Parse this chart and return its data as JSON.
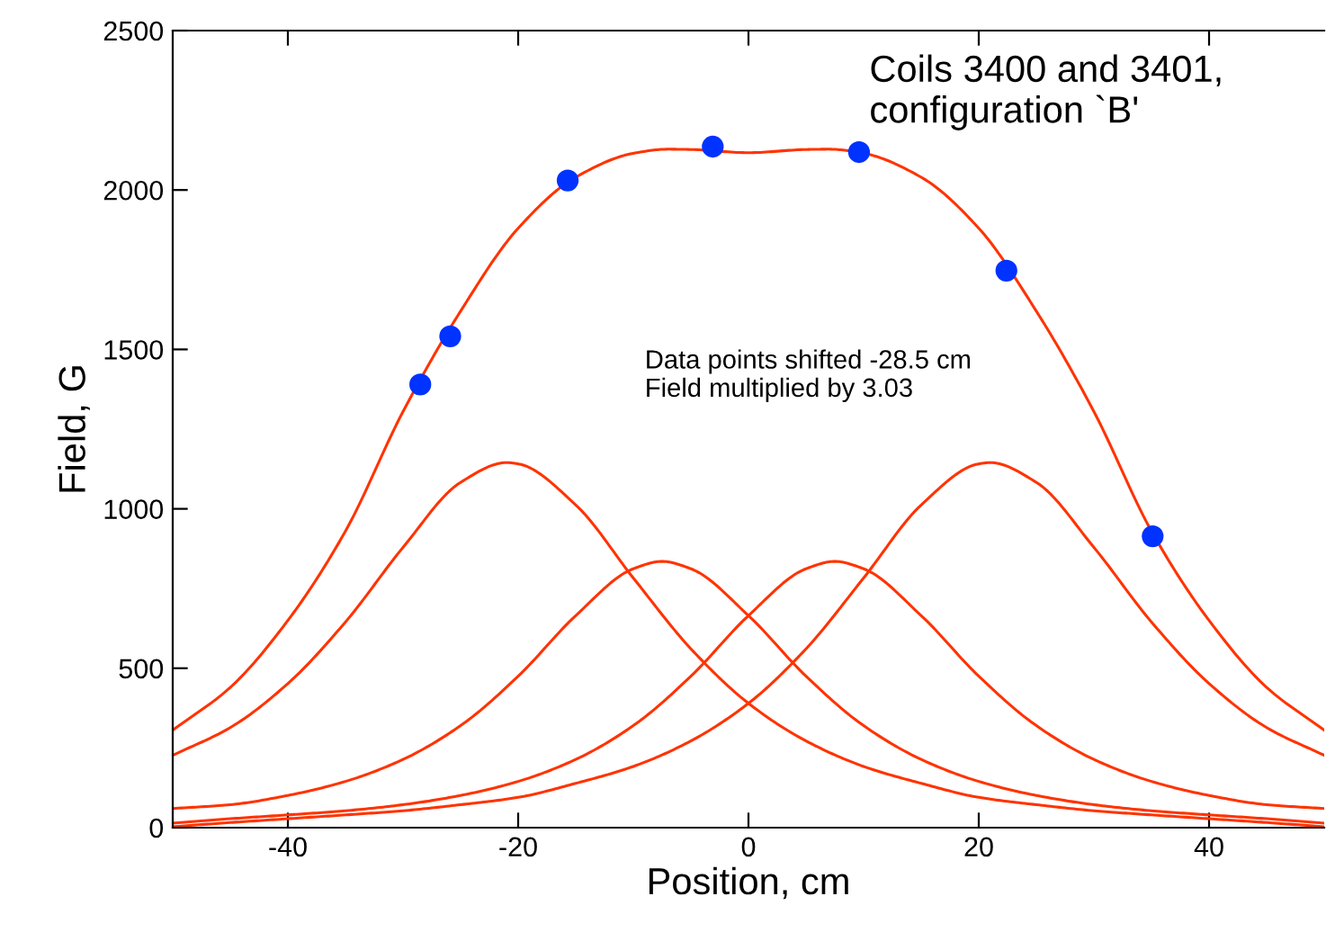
{
  "chart_data": {
    "type": "line",
    "annotations": [
      "Coils 3400 and 3401,\nconfiguration `B'",
      "Data points shifted -28.5 cm\nField multiplied by 3.03"
    ],
    "xlabel": "Position, cm",
    "ylabel": "Field, G",
    "xlim": [
      -50,
      50
    ],
    "ylim": [
      0,
      2500
    ],
    "xticks": [
      -40,
      -20,
      0,
      20,
      40
    ],
    "yticks": [
      0,
      500,
      1000,
      1500,
      2000,
      2500
    ],
    "grid": false,
    "legend": false,
    "series": [
      {
        "color": "#ff3300",
        "x": [
          -50,
          -45,
          -40,
          -35,
          -30,
          -25,
          -20,
          -15,
          -10,
          -7,
          -5,
          0,
          5,
          7,
          10,
          15,
          20,
          25,
          30,
          35,
          40,
          45,
          50
        ],
        "values": [
          306,
          440,
          650,
          930,
          1305,
          1620,
          1880,
          2040,
          2115,
          2128,
          2127,
          2117,
          2127,
          2128,
          2115,
          2040,
          1880,
          1620,
          1305,
          930,
          650,
          440,
          306
        ]
      },
      {
        "color": "#ff3300",
        "x": [
          -50,
          -45,
          -40,
          -35,
          -30,
          -25,
          -21,
          -20,
          -15,
          -10,
          -5,
          0,
          5,
          10,
          15,
          20,
          25,
          30,
          35,
          40,
          45,
          50
        ],
        "values": [
          227,
          314,
          452,
          645,
          879,
          1083,
          1145,
          1141,
          1012,
          783,
          561,
          390,
          272,
          192,
          139,
          95,
          72,
          53,
          40,
          28,
          16,
          3
        ]
      },
      {
        "color": "#ff3300",
        "x": [
          -50,
          -45,
          -40,
          -35,
          -30,
          -25,
          -20,
          -15,
          -10,
          -7.5,
          -5,
          0,
          5,
          10,
          15,
          20,
          25,
          30,
          35,
          40,
          45,
          50
        ],
        "values": [
          60,
          72,
          101,
          145,
          214,
          320,
          475,
          665,
          812,
          835,
          812,
          665,
          475,
          320,
          214,
          145,
          101,
          72,
          53,
          40,
          28,
          14
        ]
      },
      {
        "color": "#ff3300",
        "x": [
          -50,
          -45,
          -40,
          -35,
          -30,
          -25,
          -20,
          -15,
          -10,
          -5,
          0,
          5,
          7.5,
          10,
          15,
          20,
          25,
          30,
          35,
          40,
          45,
          50
        ],
        "values": [
          14,
          28,
          40,
          53,
          72,
          101,
          145,
          214,
          320,
          475,
          665,
          812,
          835,
          812,
          665,
          475,
          320,
          214,
          145,
          101,
          72,
          60
        ]
      },
      {
        "color": "#ff3300",
        "x": [
          -50,
          -45,
          -40,
          -35,
          -30,
          -25,
          -20,
          -15,
          -10,
          -5,
          0,
          5,
          10,
          15,
          20,
          21,
          25,
          30,
          35,
          40,
          45,
          50
        ],
        "values": [
          3,
          16,
          28,
          40,
          53,
          72,
          95,
          139,
          192,
          272,
          390,
          561,
          783,
          1012,
          1141,
          1145,
          1083,
          879,
          645,
          452,
          314,
          227
        ]
      },
      {
        "type": "scatter",
        "color": "#0033ff",
        "marker": "circle",
        "x": [
          -28.5,
          -25.9,
          -15.7,
          -3.1,
          9.6,
          22.4,
          35.1
        ],
        "values": [
          1390,
          1541,
          2030,
          2136,
          2119,
          1747,
          914
        ]
      }
    ]
  }
}
